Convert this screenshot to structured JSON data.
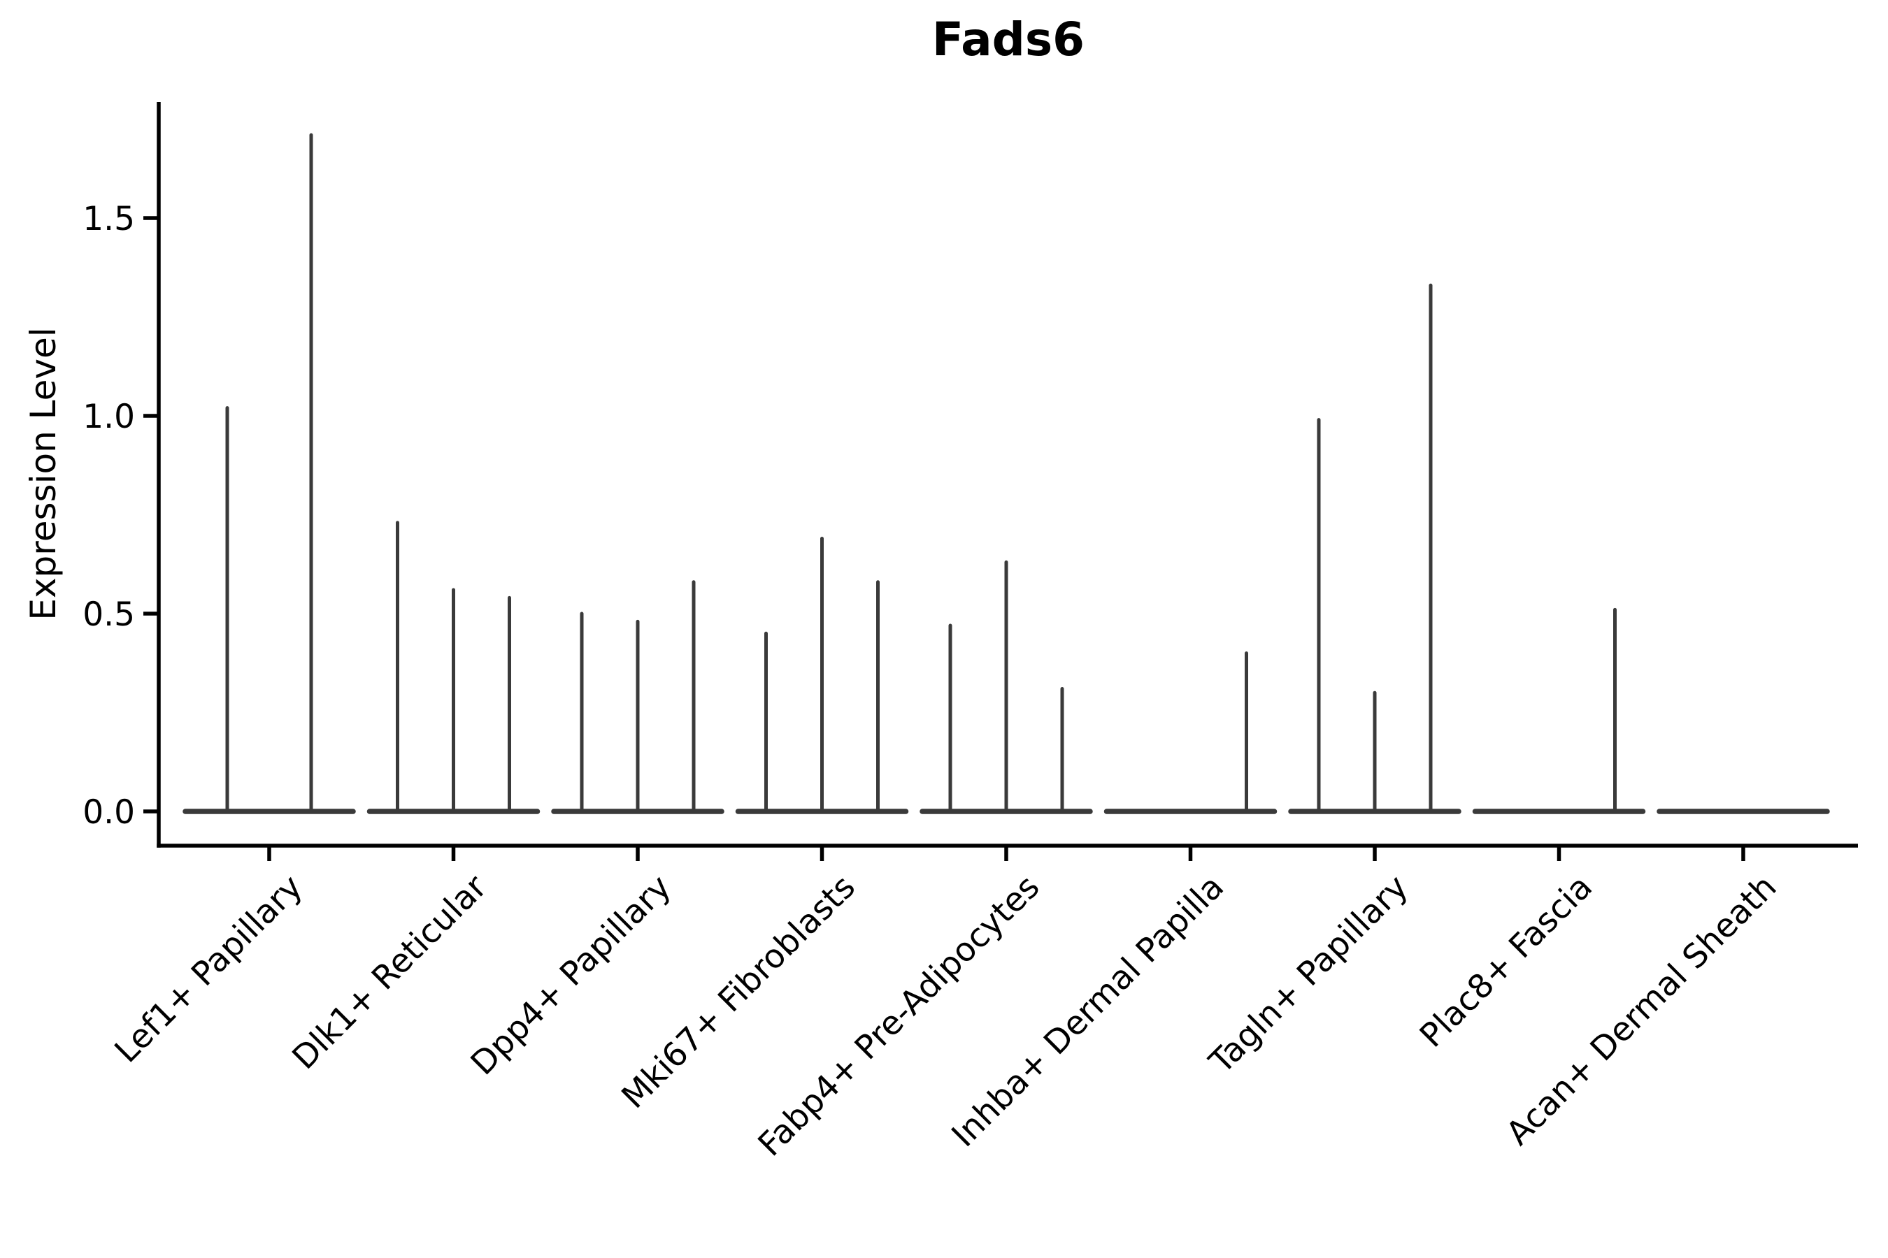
{
  "chart_data": {
    "type": "violin",
    "title": "Fads6",
    "ylabel": "Expression Level",
    "xlabel": "",
    "ylim": [
      -0.09,
      1.79
    ],
    "yticks": [
      0.0,
      0.5,
      1.0,
      1.5
    ],
    "ytick_labels": [
      "0.0",
      "0.5",
      "1.0",
      "1.5"
    ],
    "grid": false,
    "legend": "none",
    "violin_style": "needle-thin violins with flat base at zero, one cluster of sub-violins per category",
    "categories": [
      "Lef1+ Papillary",
      "Dlk1+ Reticular",
      "Dpp4+ Papillary",
      "Mki67+ Fibroblasts",
      "Fabp4+ Pre-Adipocytes",
      "Inhba+ Dermal Papilla",
      "Tagln+ Papillary",
      "Plac8+ Fascia",
      "Acan+ Dermal Sheath"
    ],
    "groups": [
      {
        "category": "Lef1+ Papillary",
        "violin_peak_values": [
          1.02,
          1.71
        ]
      },
      {
        "category": "Dlk1+ Reticular",
        "violin_peak_values": [
          0.73,
          0.56,
          0.54
        ]
      },
      {
        "category": "Dpp4+ Papillary",
        "violin_peak_values": [
          0.5,
          0.48,
          0.58
        ]
      },
      {
        "category": "Mki67+ Fibroblasts",
        "violin_peak_values": [
          0.45,
          0.69,
          0.58
        ]
      },
      {
        "category": "Fabp4+ Pre-Adipocytes",
        "violin_peak_values": [
          0.47,
          0.63,
          0.31
        ]
      },
      {
        "category": "Inhba+ Dermal Papilla",
        "violin_peak_values": [
          0.0,
          0.0,
          0.4
        ]
      },
      {
        "category": "Tagln+ Papillary",
        "violin_peak_values": [
          0.99,
          0.3,
          1.33
        ]
      },
      {
        "category": "Plac8+ Fascia",
        "violin_peak_values": [
          0.0,
          0.0,
          0.51
        ]
      },
      {
        "category": "Acan+ Dermal Sheath",
        "violin_peak_values": [
          0.0,
          0.0,
          0.0
        ]
      }
    ]
  },
  "colors": {
    "violin": "#3a3a3a",
    "axis": "#000000",
    "text": "#000000",
    "background": "#ffffff"
  }
}
